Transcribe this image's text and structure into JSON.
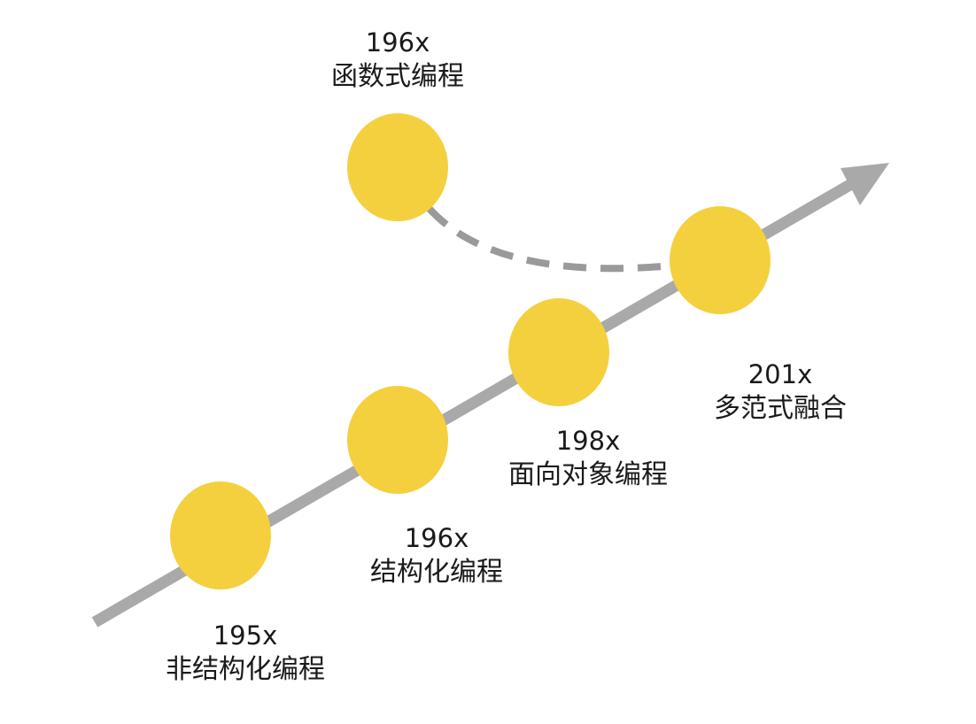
{
  "colors": {
    "node_fill": "#F4D03F",
    "timeline": "#A9A9A9",
    "dashed_link": "#9A9A9A",
    "text": "#1a1a1a"
  },
  "stages": {
    "unstructured": {
      "year": "195x",
      "name": "非结构化编程"
    },
    "structured": {
      "year": "196x",
      "name": "结构化编程"
    },
    "oop": {
      "year": "198x",
      "name": "面向对象编程"
    },
    "multi": {
      "year": "201x",
      "name": "多范式融合"
    },
    "functional": {
      "year": "196x",
      "name": "函数式编程"
    }
  }
}
